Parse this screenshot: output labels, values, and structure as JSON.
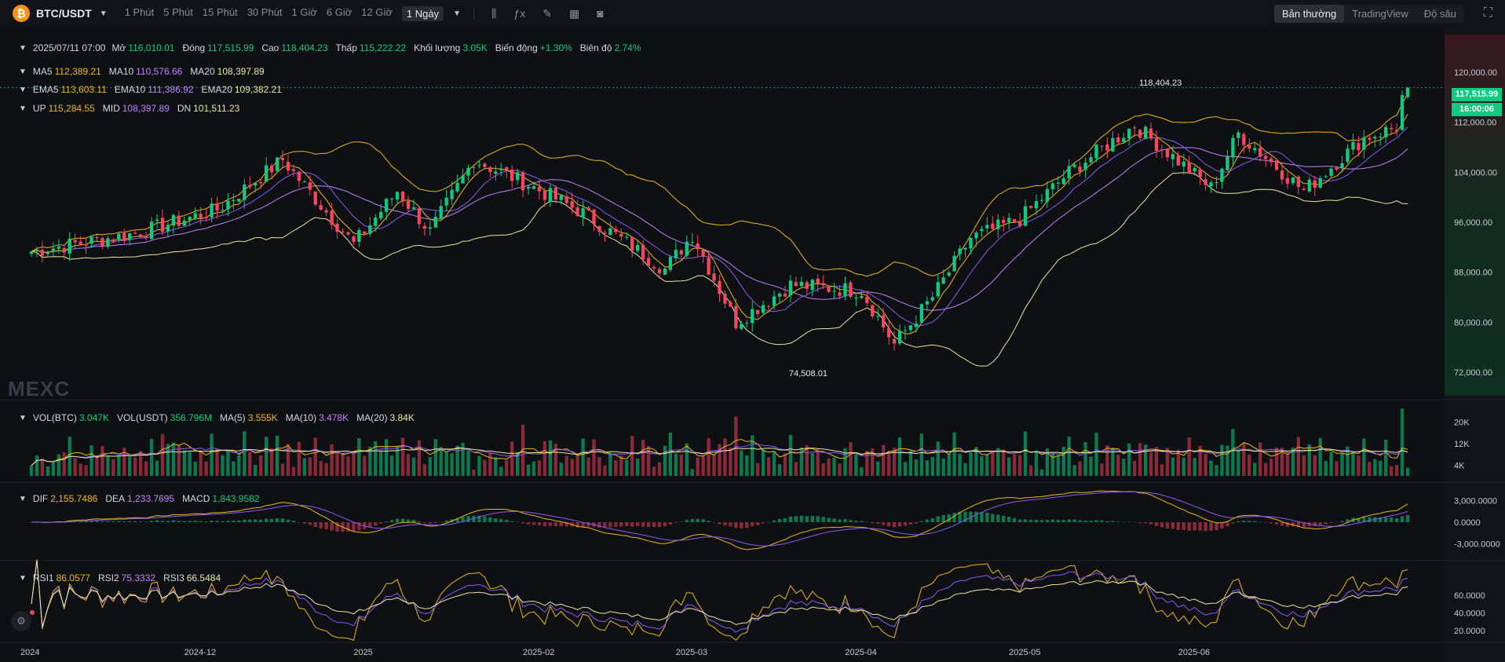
{
  "header": {
    "pair": "BTC/USDT",
    "logo_glyph": "₿",
    "intervals": [
      "1 Phút",
      "5 Phút",
      "15 Phút",
      "30 Phút",
      "1 Giờ",
      "6 Giờ",
      "12 Giờ",
      "1 Ngày"
    ],
    "active_interval": "1 Ngày",
    "tools": [
      "candle-settings-icon",
      "indicator-icon",
      "draw-icon",
      "layout-icon",
      "camera-icon"
    ],
    "views": [
      "Bản thường",
      "TradingView",
      "Độ sâu"
    ],
    "active_view": "Bản thường"
  },
  "ohlc": {
    "date": "2025/07/11 07:00",
    "open_label": "Mở",
    "open": "116,010.01",
    "close_label": "Đóng",
    "close": "117,515.99",
    "high_label": "Cao",
    "high": "118,404.23",
    "low_label": "Thấp",
    "low": "115,222.22",
    "volume_label": "Khối lượng",
    "volume": "3.05K",
    "change_label": "Biến động",
    "change": "+1.30%",
    "amplitude_label": "Biên độ",
    "amplitude": "2.74%"
  },
  "legends": {
    "ma": [
      {
        "k": "MA5",
        "v": "112,389.21",
        "color": "#f0b90b"
      },
      {
        "k": "MA10",
        "v": "110,576.66",
        "color": "#c084fc"
      },
      {
        "k": "MA20",
        "v": "108,397.89",
        "color": "#e8e9a0"
      }
    ],
    "ema": [
      {
        "k": "EMA5",
        "v": "113,603.11",
        "color": "#f0b90b"
      },
      {
        "k": "EMA10",
        "v": "111,386.92",
        "color": "#c084fc"
      },
      {
        "k": "EMA20",
        "v": "109,382.21",
        "color": "#e8e9a0"
      }
    ],
    "boll": [
      {
        "k": "UP",
        "v": "115,284.55",
        "color": "#f0b90b"
      },
      {
        "k": "MID",
        "v": "108,397.89",
        "color": "#c084fc"
      },
      {
        "k": "DN",
        "v": "101,511.23",
        "color": "#e8e9a0"
      }
    ],
    "vol": [
      {
        "k": "VOL(BTC)",
        "v": "3.047K",
        "color": "#0ecb81"
      },
      {
        "k": "VOL(USDT)",
        "v": "356.796M",
        "color": "#0ecb81"
      },
      {
        "k": "MA(5)",
        "v": "3.555K",
        "color": "#f0b90b"
      },
      {
        "k": "MA(10)",
        "v": "3.478K",
        "color": "#c084fc"
      },
      {
        "k": "MA(20)",
        "v": "3.84K",
        "color": "#e8e9a0"
      }
    ],
    "macd": [
      {
        "k": "DIF",
        "v": "2,155.7486",
        "color": "#f0b90b"
      },
      {
        "k": "DEA",
        "v": "1,233.7695",
        "color": "#c084fc"
      },
      {
        "k": "MACD",
        "v": "1,843.9582",
        "color": "#0ecb81"
      }
    ],
    "rsi": [
      {
        "k": "RSI1",
        "v": "86.0577",
        "color": "#f0b90b"
      },
      {
        "k": "RSI2",
        "v": "75.3332",
        "color": "#c084fc"
      },
      {
        "k": "RSI3",
        "v": "66.5484",
        "color": "#e8e9a0"
      }
    ]
  },
  "current_price": {
    "price": "117,515.99",
    "countdown": "16:00:06"
  },
  "annotations": {
    "high": "118,404.23",
    "low": "74,508.01"
  },
  "watermark": "MEXC",
  "colors": {
    "up": "#0ecb81",
    "down": "#f6465d",
    "ma5": "#f0b90b",
    "ma10": "#c084fc",
    "ma20": "#e8e9a0"
  },
  "chart_data": [
    {
      "type": "candlestick",
      "title": "BTC/USDT 1 Ngày",
      "x_ticks": [
        "2024",
        "2024-12",
        "2025",
        "2025-02",
        "2025-03",
        "2025-04",
        "2025-05",
        "2025-06"
      ],
      "y_ticks": [
        "120,000.00",
        "112,000.00",
        "104,000.00",
        "96,000.00",
        "88,000.00",
        "80,000.00",
        "72,000.00"
      ],
      "ylim": [
        72000,
        120000
      ],
      "close_series": [
        {
          "date": "2024-11-20",
          "close": 94200
        },
        {
          "date": "2024-12-05",
          "close": 98000
        },
        {
          "date": "2024-12-17",
          "close": 106000
        },
        {
          "date": "2024-12-30",
          "close": 92500
        },
        {
          "date": "2025-01-07",
          "close": 101000
        },
        {
          "date": "2025-01-13",
          "close": 94500
        },
        {
          "date": "2025-01-21",
          "close": 106000
        },
        {
          "date": "2025-01-31",
          "close": 102000
        },
        {
          "date": "2025-02-10",
          "close": 97500
        },
        {
          "date": "2025-02-25",
          "close": 88500
        },
        {
          "date": "2025-03-02",
          "close": 94000
        },
        {
          "date": "2025-03-10",
          "close": 80000
        },
        {
          "date": "2025-03-20",
          "close": 86000
        },
        {
          "date": "2025-04-02",
          "close": 85000
        },
        {
          "date": "2025-04-08",
          "close": 76500
        },
        {
          "date": "2025-04-15",
          "close": 84000
        },
        {
          "date": "2025-04-22",
          "close": 93500
        },
        {
          "date": "2025-05-01",
          "close": 96500
        },
        {
          "date": "2025-05-10",
          "close": 104000
        },
        {
          "date": "2025-05-22",
          "close": 111500
        },
        {
          "date": "2025-06-05",
          "close": 101500
        },
        {
          "date": "2025-06-10",
          "close": 110200
        },
        {
          "date": "2025-06-22",
          "close": 101000
        },
        {
          "date": "2025-07-03",
          "close": 109500
        },
        {
          "date": "2025-07-09",
          "close": 111200
        },
        {
          "date": "2025-07-10",
          "close": 116010
        },
        {
          "date": "2025-07-11",
          "close": 117515.99
        }
      ],
      "last": {
        "date": "2025/07/11 07:00",
        "open": 116010.01,
        "high": 118404.23,
        "low": 115222.22,
        "close": 117515.99
      },
      "marked_high": 118404.23,
      "marked_low": 74508.01
    },
    {
      "type": "bar",
      "title": "VOL(BTC)",
      "y_ticks": [
        "20K",
        "12K",
        "4K"
      ],
      "ylim": [
        0,
        24000
      ],
      "last_value": 3047
    },
    {
      "type": "bar",
      "title": "MACD",
      "y_ticks": [
        "3,000.0000",
        "0.0000",
        "-3,000.0000"
      ],
      "last": {
        "DIF": 2155.7486,
        "DEA": 1233.7695,
        "MACD": 1843.9582
      }
    },
    {
      "type": "line",
      "title": "RSI",
      "y_ticks": [
        "60.0000",
        "40.0000",
        "20.0000"
      ],
      "last": {
        "RSI1": 86.0577,
        "RSI2": 75.3332,
        "RSI3": 66.5484
      }
    }
  ]
}
